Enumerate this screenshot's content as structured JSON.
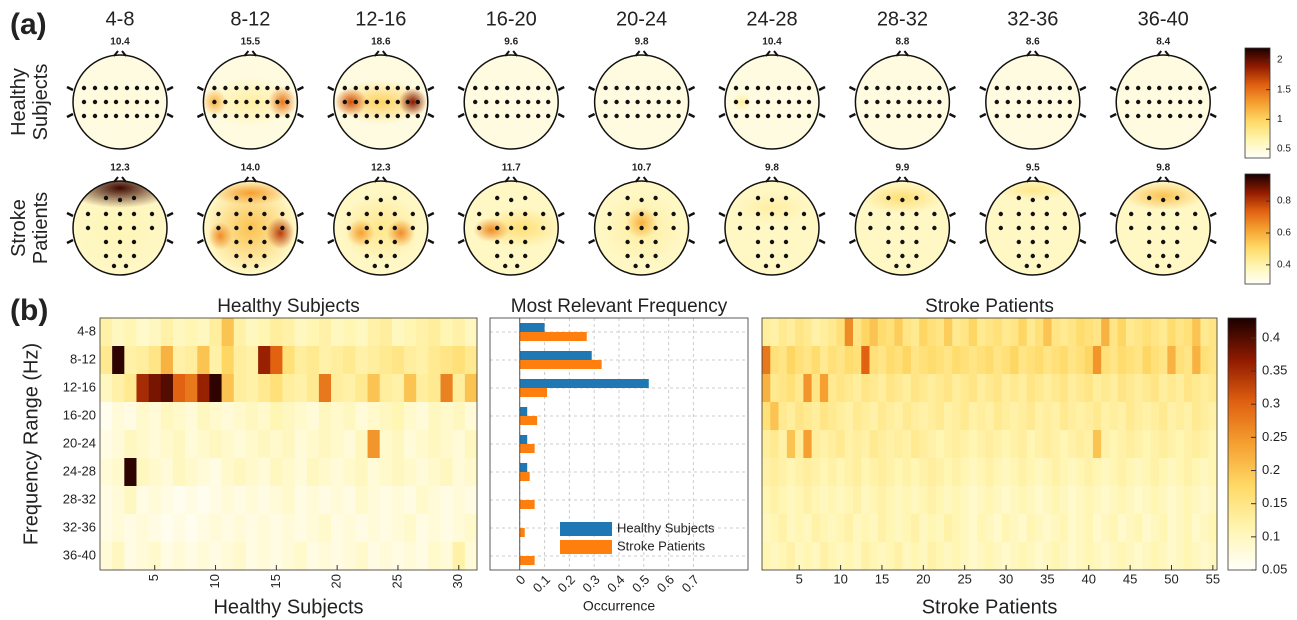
{
  "panel_labels": [
    "(a)",
    "(b)"
  ],
  "colormap": [
    "#fffffa",
    "#fff5b0",
    "#ffd966",
    "#f5a030",
    "#e06010",
    "#901a00",
    "#1a0000"
  ],
  "topomaps": {
    "rows": [
      {
        "label_lines": [
          "Healthy",
          "Subjects"
        ],
        "peak_labels": [
          "10.4",
          "15.5",
          "18.6",
          "9.6",
          "9.8",
          "10.4",
          "8.8",
          "8.6",
          "8.4"
        ],
        "colorbar": {
          "lim": [
            0.35,
            2.2
          ],
          "ticks": [
            0.5,
            1,
            1.5,
            2
          ]
        }
      },
      {
        "label_lines": [
          "Stroke",
          "Patients"
        ],
        "peak_labels": [
          "12.3",
          "14.0",
          "12.3",
          "11.7",
          "10.7",
          "9.8",
          "9.9",
          "9.5",
          "9.8"
        ],
        "colorbar": {
          "lim": [
            0.28,
            0.97
          ],
          "ticks": [
            0.4,
            0.6,
            0.8
          ]
        }
      }
    ]
  },
  "chart_data": [
    {
      "type": "heatmap",
      "title": "Healthy Subjects",
      "xlabel": "Healthy Subjects",
      "ylabel": "Frequency Range (Hz)",
      "categories": [
        "4-8",
        "8-12",
        "12-16",
        "16-20",
        "20-24",
        "24-28",
        "28-32",
        "32-36",
        "36-40"
      ],
      "xlim": [
        0.5,
        31.5
      ],
      "xticks": [
        5,
        10,
        15,
        20,
        25,
        30
      ],
      "z": [
        [
          0.12,
          0.1,
          0.11,
          0.09,
          0.1,
          0.12,
          0.1,
          0.11,
          0.1,
          0.13,
          0.2,
          0.12,
          0.1,
          0.11,
          0.13,
          0.12,
          0.1,
          0.11,
          0.12,
          0.1,
          0.11,
          0.1,
          0.12,
          0.13,
          0.1,
          0.11,
          0.12,
          0.13,
          0.11,
          0.12,
          0.1
        ],
        [
          0.14,
          0.42,
          0.12,
          0.13,
          0.15,
          0.22,
          0.12,
          0.13,
          0.2,
          0.12,
          0.18,
          0.13,
          0.12,
          0.36,
          0.3,
          0.16,
          0.13,
          0.14,
          0.12,
          0.13,
          0.14,
          0.12,
          0.13,
          0.14,
          0.15,
          0.13,
          0.12,
          0.14,
          0.15,
          0.16,
          0.14
        ],
        [
          0.1,
          0.12,
          0.14,
          0.35,
          0.38,
          0.4,
          0.3,
          0.28,
          0.36,
          0.42,
          0.2,
          0.13,
          0.12,
          0.14,
          0.16,
          0.13,
          0.12,
          0.14,
          0.28,
          0.13,
          0.12,
          0.14,
          0.2,
          0.13,
          0.12,
          0.2,
          0.13,
          0.14,
          0.27,
          0.13,
          0.2
        ],
        [
          0.06,
          0.08,
          0.07,
          0.09,
          0.08,
          0.1,
          0.09,
          0.08,
          0.1,
          0.09,
          0.08,
          0.09,
          0.1,
          0.09,
          0.11,
          0.1,
          0.09,
          0.08,
          0.1,
          0.09,
          0.1,
          0.08,
          0.09,
          0.1,
          0.11,
          0.09,
          0.08,
          0.1,
          0.09,
          0.1,
          0.08
        ],
        [
          0.07,
          0.08,
          0.1,
          0.09,
          0.08,
          0.09,
          0.1,
          0.08,
          0.09,
          0.1,
          0.09,
          0.08,
          0.09,
          0.1,
          0.09,
          0.1,
          0.08,
          0.09,
          0.1,
          0.09,
          0.08,
          0.1,
          0.25,
          0.09,
          0.1,
          0.08,
          0.09,
          0.1,
          0.09,
          0.08,
          0.1
        ],
        [
          0.08,
          0.09,
          0.42,
          0.1,
          0.09,
          0.08,
          0.1,
          0.09,
          0.08,
          0.07,
          0.09,
          0.1,
          0.09,
          0.08,
          0.1,
          0.09,
          0.08,
          0.1,
          0.09,
          0.08,
          0.09,
          0.1,
          0.08,
          0.09,
          0.1,
          0.09,
          0.08,
          0.09,
          0.1,
          0.08,
          0.09
        ],
        [
          0.07,
          0.08,
          0.1,
          0.07,
          0.08,
          0.07,
          0.06,
          0.07,
          0.06,
          0.07,
          0.08,
          0.07,
          0.08,
          0.07,
          0.08,
          0.09,
          0.07,
          0.08,
          0.07,
          0.08,
          0.07,
          0.09,
          0.08,
          0.07,
          0.08,
          0.07,
          0.09,
          0.08,
          0.07,
          0.08,
          0.07
        ],
        [
          0.07,
          0.08,
          0.07,
          0.08,
          0.07,
          0.06,
          0.07,
          0.06,
          0.07,
          0.08,
          0.07,
          0.08,
          0.07,
          0.08,
          0.07,
          0.08,
          0.07,
          0.08,
          0.09,
          0.07,
          0.08,
          0.07,
          0.08,
          0.07,
          0.08,
          0.09,
          0.07,
          0.08,
          0.07,
          0.08,
          0.09
        ],
        [
          0.08,
          0.1,
          0.07,
          0.08,
          0.09,
          0.07,
          0.08,
          0.07,
          0.08,
          0.07,
          0.08,
          0.09,
          0.07,
          0.08,
          0.07,
          0.08,
          0.09,
          0.07,
          0.08,
          0.07,
          0.08,
          0.09,
          0.07,
          0.08,
          0.07,
          0.08,
          0.07,
          0.09,
          0.08,
          0.12,
          0.08
        ]
      ]
    },
    {
      "type": "barh",
      "title": "Most Relevant Frequency",
      "xlabel": "Occurrence",
      "xlim": [
        -0.12,
        0.92
      ],
      "xticks": [
        0,
        0.1,
        0.2,
        0.3,
        0.4,
        0.5,
        0.6,
        0.7
      ],
      "grid": true,
      "series": [
        {
          "name": "Healthy Subjects",
          "color": "#1f77b4",
          "values": [
            0.1,
            0.29,
            0.52,
            0.03,
            0.03,
            0.03,
            0,
            0,
            0
          ]
        },
        {
          "name": "Stroke Patients",
          "color": "#ff7f0e",
          "values": [
            0.27,
            0.33,
            0.11,
            0.07,
            0.06,
            0.04,
            0.06,
            0.02,
            0.06
          ]
        }
      ]
    },
    {
      "type": "heatmap",
      "title": "Stroke Patients",
      "xlabel": "Stroke Patients",
      "xlim": [
        0.5,
        55.5
      ],
      "xticks": [
        5,
        10,
        15,
        20,
        25,
        30,
        35,
        40,
        45,
        50,
        55
      ],
      "zlim": [
        0.05,
        0.43
      ],
      "zticks": [
        0.05,
        0.1,
        0.15,
        0.2,
        0.25,
        0.3,
        0.35,
        0.4
      ],
      "z": [
        [
          0.13,
          0.12,
          0.14,
          0.13,
          0.15,
          0.14,
          0.12,
          0.13,
          0.14,
          0.16,
          0.26,
          0.15,
          0.18,
          0.2,
          0.17,
          0.16,
          0.19,
          0.15,
          0.14,
          0.18,
          0.16,
          0.15,
          0.19,
          0.14,
          0.15,
          0.18,
          0.14,
          0.15,
          0.16,
          0.14,
          0.15,
          0.18,
          0.14,
          0.16,
          0.2,
          0.15,
          0.14,
          0.15,
          0.17,
          0.16,
          0.15,
          0.22,
          0.15,
          0.18,
          0.14,
          0.15,
          0.16,
          0.15,
          0.14,
          0.17,
          0.15,
          0.16,
          0.2,
          0.14,
          0.15
        ],
        [
          0.28,
          0.16,
          0.15,
          0.18,
          0.16,
          0.15,
          0.17,
          0.14,
          0.16,
          0.15,
          0.17,
          0.16,
          0.3,
          0.16,
          0.15,
          0.17,
          0.16,
          0.18,
          0.15,
          0.16,
          0.17,
          0.16,
          0.15,
          0.17,
          0.16,
          0.15,
          0.16,
          0.17,
          0.15,
          0.16,
          0.18,
          0.15,
          0.16,
          0.17,
          0.15,
          0.16,
          0.17,
          0.15,
          0.16,
          0.18,
          0.25,
          0.16,
          0.15,
          0.17,
          0.16,
          0.15,
          0.18,
          0.16,
          0.15,
          0.22,
          0.16,
          0.15,
          0.22,
          0.16,
          0.15
        ],
        [
          0.22,
          0.14,
          0.15,
          0.16,
          0.14,
          0.25,
          0.15,
          0.24,
          0.14,
          0.15,
          0.14,
          0.13,
          0.15,
          0.14,
          0.13,
          0.15,
          0.14,
          0.13,
          0.15,
          0.14,
          0.13,
          0.14,
          0.15,
          0.13,
          0.14,
          0.15,
          0.13,
          0.14,
          0.15,
          0.13,
          0.14,
          0.13,
          0.15,
          0.14,
          0.13,
          0.14,
          0.15,
          0.13,
          0.14,
          0.15,
          0.13,
          0.14,
          0.13,
          0.15,
          0.14,
          0.13,
          0.14,
          0.15,
          0.13,
          0.14,
          0.13,
          0.15,
          0.14,
          0.13,
          0.14
        ],
        [
          0.16,
          0.2,
          0.14,
          0.13,
          0.15,
          0.14,
          0.13,
          0.15,
          0.14,
          0.13,
          0.12,
          0.14,
          0.13,
          0.12,
          0.14,
          0.13,
          0.12,
          0.14,
          0.13,
          0.12,
          0.13,
          0.14,
          0.12,
          0.13,
          0.14,
          0.12,
          0.13,
          0.12,
          0.14,
          0.13,
          0.12,
          0.13,
          0.14,
          0.12,
          0.13,
          0.12,
          0.14,
          0.13,
          0.12,
          0.13,
          0.14,
          0.12,
          0.13,
          0.12,
          0.14,
          0.13,
          0.12,
          0.13,
          0.14,
          0.12,
          0.13,
          0.12,
          0.14,
          0.13,
          0.12
        ],
        [
          0.13,
          0.14,
          0.12,
          0.2,
          0.13,
          0.24,
          0.13,
          0.12,
          0.13,
          0.14,
          0.12,
          0.13,
          0.12,
          0.14,
          0.13,
          0.12,
          0.13,
          0.12,
          0.14,
          0.13,
          0.12,
          0.11,
          0.12,
          0.13,
          0.12,
          0.11,
          0.12,
          0.13,
          0.12,
          0.11,
          0.12,
          0.13,
          0.11,
          0.12,
          0.13,
          0.12,
          0.11,
          0.12,
          0.13,
          0.12,
          0.2,
          0.12,
          0.11,
          0.12,
          0.13,
          0.12,
          0.11,
          0.12,
          0.13,
          0.12,
          0.11,
          0.12,
          0.13,
          0.12,
          0.11
        ],
        [
          0.12,
          0.13,
          0.12,
          0.11,
          0.12,
          0.13,
          0.12,
          0.11,
          0.12,
          0.11,
          0.12,
          0.13,
          0.11,
          0.12,
          0.13,
          0.12,
          0.11,
          0.12,
          0.11,
          0.12,
          0.13,
          0.12,
          0.11,
          0.12,
          0.11,
          0.1,
          0.11,
          0.12,
          0.11,
          0.1,
          0.11,
          0.12,
          0.11,
          0.1,
          0.11,
          0.12,
          0.11,
          0.1,
          0.11,
          0.12,
          0.11,
          0.1,
          0.11,
          0.12,
          0.11,
          0.1,
          0.11,
          0.12,
          0.11,
          0.1,
          0.11,
          0.12,
          0.11,
          0.1,
          0.11
        ],
        [
          0.11,
          0.12,
          0.11,
          0.1,
          0.11,
          0.12,
          0.11,
          0.1,
          0.11,
          0.1,
          0.11,
          0.12,
          0.1,
          0.11,
          0.12,
          0.11,
          0.1,
          0.11,
          0.1,
          0.11,
          0.12,
          0.11,
          0.1,
          0.11,
          0.1,
          0.09,
          0.1,
          0.11,
          0.1,
          0.09,
          0.1,
          0.11,
          0.1,
          0.09,
          0.1,
          0.11,
          0.1,
          0.09,
          0.1,
          0.11,
          0.1,
          0.09,
          0.1,
          0.11,
          0.1,
          0.09,
          0.1,
          0.11,
          0.1,
          0.09,
          0.1,
          0.11,
          0.1,
          0.09,
          0.1
        ],
        [
          0.1,
          0.11,
          0.12,
          0.1,
          0.11,
          0.1,
          0.12,
          0.11,
          0.1,
          0.11,
          0.12,
          0.1,
          0.11,
          0.1,
          0.12,
          0.11,
          0.1,
          0.11,
          0.12,
          0.1,
          0.11,
          0.1,
          0.12,
          0.11,
          0.1,
          0.09,
          0.11,
          0.1,
          0.09,
          0.11,
          0.1,
          0.09,
          0.11,
          0.1,
          0.09,
          0.1,
          0.11,
          0.09,
          0.1,
          0.11,
          0.09,
          0.1,
          0.11,
          0.09,
          0.1,
          0.11,
          0.09,
          0.1,
          0.11,
          0.09,
          0.1,
          0.11,
          0.09,
          0.1,
          0.11
        ],
        [
          0.11,
          0.1,
          0.11,
          0.12,
          0.1,
          0.11,
          0.1,
          0.12,
          0.11,
          0.1,
          0.11,
          0.1,
          0.12,
          0.11,
          0.1,
          0.11,
          0.12,
          0.1,
          0.11,
          0.1,
          0.12,
          0.11,
          0.1,
          0.11,
          0.1,
          0.09,
          0.1,
          0.11,
          0.1,
          0.09,
          0.1,
          0.11,
          0.1,
          0.09,
          0.1,
          0.11,
          0.1,
          0.09,
          0.1,
          0.11,
          0.1,
          0.09,
          0.1,
          0.11,
          0.1,
          0.09,
          0.1,
          0.11,
          0.1,
          0.09,
          0.1,
          0.11,
          0.1,
          0.09,
          0.1
        ]
      ]
    }
  ]
}
